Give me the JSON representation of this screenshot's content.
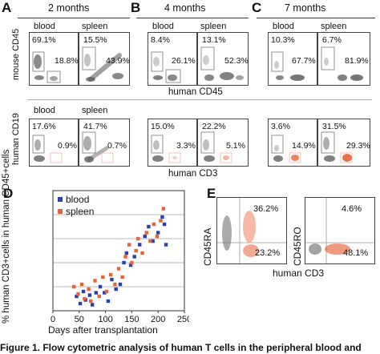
{
  "panel_letters": {
    "a": "A",
    "b": "B",
    "c": "C",
    "d": "D",
    "e": "E"
  },
  "headers": {
    "a": "2 months",
    "b": "4 months",
    "c": "7 months"
  },
  "conditions": {
    "blood": "blood",
    "spleen": "spleen"
  },
  "axis_labels": {
    "mouse_cd45": "mouse CD45",
    "human_cd45": "human CD45",
    "human_cd19": "human CD19",
    "human_cd3": "human CD3",
    "cd45ra": "CD45RA",
    "cd45ro": "CD45RO",
    "human_cd3_e": "human CD3"
  },
  "top_row_percents": {
    "a_blood": [
      "69.1%",
      "18.8%"
    ],
    "a_spleen": [
      "15.5%",
      "43.9%"
    ],
    "b_blood": [
      "8.4%",
      "26.1%"
    ],
    "b_spleen": [
      "13.1%",
      "52.3%"
    ],
    "c_blood": [
      "10.3%",
      "67.7%"
    ],
    "c_spleen": [
      "6.7%",
      "81.9%"
    ]
  },
  "bottom_row_percents": {
    "a_blood": [
      "17.6%",
      "0.9%"
    ],
    "a_spleen": [
      "41.7%",
      "0.7%"
    ],
    "b_blood": [
      "15.0%",
      "3.3%"
    ],
    "b_spleen": [
      "22.2%",
      "5.1%"
    ],
    "c_blood": [
      "3.6%",
      "14.9%"
    ],
    "c_spleen": [
      "31.5%",
      "29.3%"
    ]
  },
  "panel_e_percents": {
    "cd45ra_high": "36.2%",
    "cd45ra_low": "23.2%",
    "cd45ro_high": "4.6%",
    "cd45ro_low": "48.1%"
  },
  "caption": "Figure 1. Flow cytometric analysis of human T cells in the peripheral blood and",
  "colors": {
    "blood": "#2a3fb0",
    "spleen": "#e8623a",
    "grid": "#b8b8b8",
    "dot": "#555555"
  },
  "chart_data": {
    "type": "scatter",
    "title": "",
    "xlabel": "Days after transplantation",
    "ylabel": "% human CD3+cells in human CD45+cells",
    "xlim": [
      0,
      250
    ],
    "ylim": [
      0,
      100
    ],
    "xticks": [
      "0",
      "50",
      "100",
      "150",
      "200",
      "250"
    ],
    "yticks": [],
    "grid_y": [
      20,
      40,
      60,
      80
    ],
    "legend": "top-left",
    "series": [
      {
        "name": "blood",
        "color": "#2a3fb0",
        "points": [
          [
            45,
            12
          ],
          [
            52,
            6
          ],
          [
            58,
            16
          ],
          [
            62,
            9
          ],
          [
            70,
            13
          ],
          [
            75,
            5
          ],
          [
            82,
            15
          ],
          [
            90,
            20
          ],
          [
            98,
            15
          ],
          [
            105,
            8
          ],
          [
            112,
            26
          ],
          [
            120,
            18
          ],
          [
            128,
            22
          ],
          [
            135,
            40
          ],
          [
            140,
            48
          ],
          [
            148,
            38
          ],
          [
            155,
            45
          ],
          [
            165,
            55
          ],
          [
            175,
            62
          ],
          [
            182,
            70
          ],
          [
            190,
            58
          ],
          [
            200,
            65
          ],
          [
            208,
            78
          ],
          [
            212,
            72
          ],
          [
            215,
            55
          ]
        ]
      },
      {
        "name": "spleen",
        "color": "#e8623a",
        "points": [
          [
            40,
            20
          ],
          [
            48,
            14
          ],
          [
            55,
            22
          ],
          [
            60,
            10
          ],
          [
            68,
            18
          ],
          [
            72,
            8
          ],
          [
            80,
            25
          ],
          [
            88,
            12
          ],
          [
            95,
            28
          ],
          [
            102,
            16
          ],
          [
            110,
            30
          ],
          [
            118,
            22
          ],
          [
            125,
            35
          ],
          [
            132,
            28
          ],
          [
            138,
            45
          ],
          [
            145,
            55
          ],
          [
            150,
            40
          ],
          [
            158,
            50
          ],
          [
            162,
            60
          ],
          [
            170,
            48
          ],
          [
            178,
            65
          ],
          [
            185,
            58
          ],
          [
            192,
            72
          ],
          [
            198,
            62
          ],
          [
            205,
            75
          ],
          [
            210,
            85
          ]
        ]
      }
    ]
  }
}
